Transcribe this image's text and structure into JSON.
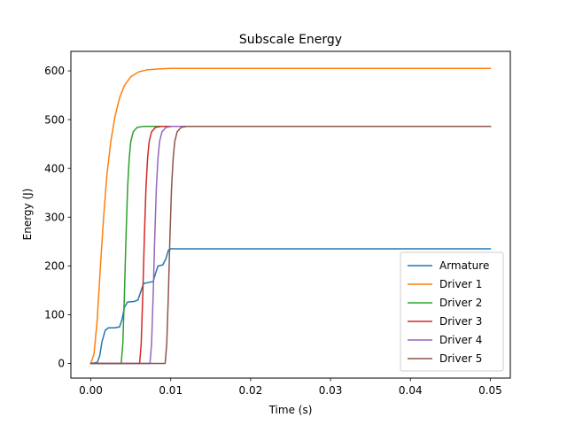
{
  "chart_data": {
    "type": "line",
    "title": "Subscale Energy",
    "xlabel": "Time (s)",
    "ylabel": "Energy (J)",
    "xlim": [
      -0.0025,
      0.0525
    ],
    "ylim": [
      -30,
      640
    ],
    "xticks": [
      0.0,
      0.01,
      0.02,
      0.03,
      0.04,
      0.05
    ],
    "xtick_labels": [
      "0.00",
      "0.01",
      "0.02",
      "0.03",
      "0.04",
      "0.05"
    ],
    "yticks": [
      0,
      100,
      200,
      300,
      400,
      500,
      600
    ],
    "ytick_labels": [
      "0",
      "100",
      "200",
      "300",
      "400",
      "500",
      "600"
    ],
    "legend_position": "lower-right",
    "grid": false,
    "series": [
      {
        "name": "Armature",
        "color": "#1f77b4",
        "points": [
          [
            0,
            0
          ],
          [
            0.0008,
            2
          ],
          [
            0.0011,
            15
          ],
          [
            0.0014,
            45
          ],
          [
            0.0018,
            68
          ],
          [
            0.0022,
            73
          ],
          [
            0.003,
            73
          ],
          [
            0.0036,
            75
          ],
          [
            0.0039,
            90
          ],
          [
            0.0042,
            115
          ],
          [
            0.0046,
            126
          ],
          [
            0.0054,
            127
          ],
          [
            0.0059,
            130
          ],
          [
            0.0062,
            145
          ],
          [
            0.0066,
            164
          ],
          [
            0.0072,
            166
          ],
          [
            0.0078,
            168
          ],
          [
            0.0081,
            185
          ],
          [
            0.0084,
            200
          ],
          [
            0.009,
            202
          ],
          [
            0.0094,
            215
          ],
          [
            0.0097,
            232
          ],
          [
            0.01,
            235
          ],
          [
            0.05,
            235
          ]
        ]
      },
      {
        "name": "Driver 1",
        "color": "#ff7f0e",
        "points": [
          [
            0,
            0
          ],
          [
            0.0004,
            20
          ],
          [
            0.0008,
            90
          ],
          [
            0.0012,
            200
          ],
          [
            0.0016,
            300
          ],
          [
            0.002,
            385
          ],
          [
            0.0025,
            455
          ],
          [
            0.003,
            505
          ],
          [
            0.0036,
            545
          ],
          [
            0.0042,
            570
          ],
          [
            0.005,
            588
          ],
          [
            0.006,
            598
          ],
          [
            0.007,
            602
          ],
          [
            0.0085,
            604
          ],
          [
            0.01,
            605
          ],
          [
            0.02,
            605
          ],
          [
            0.05,
            605
          ]
        ]
      },
      {
        "name": "Driver 2",
        "color": "#2ca02c",
        "points": [
          [
            0,
            0
          ],
          [
            0.0038,
            0
          ],
          [
            0.004,
            40
          ],
          [
            0.0042,
            140
          ],
          [
            0.0044,
            260
          ],
          [
            0.0046,
            360
          ],
          [
            0.0048,
            420
          ],
          [
            0.005,
            455
          ],
          [
            0.0053,
            475
          ],
          [
            0.0058,
            484
          ],
          [
            0.0065,
            486
          ],
          [
            0.05,
            486
          ]
        ]
      },
      {
        "name": "Driver 3",
        "color": "#d62728",
        "points": [
          [
            0,
            0
          ],
          [
            0.0061,
            0
          ],
          [
            0.0063,
            40
          ],
          [
            0.0065,
            140
          ],
          [
            0.0067,
            260
          ],
          [
            0.0069,
            360
          ],
          [
            0.0071,
            420
          ],
          [
            0.0073,
            455
          ],
          [
            0.0076,
            475
          ],
          [
            0.0081,
            484
          ],
          [
            0.0088,
            486
          ],
          [
            0.05,
            486
          ]
        ]
      },
      {
        "name": "Driver 4",
        "color": "#9467bd",
        "points": [
          [
            0,
            0
          ],
          [
            0.0074,
            0
          ],
          [
            0.0076,
            40
          ],
          [
            0.0078,
            140
          ],
          [
            0.008,
            260
          ],
          [
            0.0082,
            360
          ],
          [
            0.0084,
            420
          ],
          [
            0.0086,
            455
          ],
          [
            0.0089,
            475
          ],
          [
            0.0094,
            484
          ],
          [
            0.0101,
            486
          ],
          [
            0.05,
            486
          ]
        ]
      },
      {
        "name": "Driver 5",
        "color": "#8c564b",
        "points": [
          [
            0,
            0
          ],
          [
            0.0093,
            0
          ],
          [
            0.0095,
            40
          ],
          [
            0.0097,
            140
          ],
          [
            0.0099,
            260
          ],
          [
            0.0101,
            360
          ],
          [
            0.0103,
            420
          ],
          [
            0.0105,
            455
          ],
          [
            0.0108,
            475
          ],
          [
            0.0113,
            484
          ],
          [
            0.012,
            486
          ],
          [
            0.05,
            486
          ]
        ]
      }
    ]
  }
}
